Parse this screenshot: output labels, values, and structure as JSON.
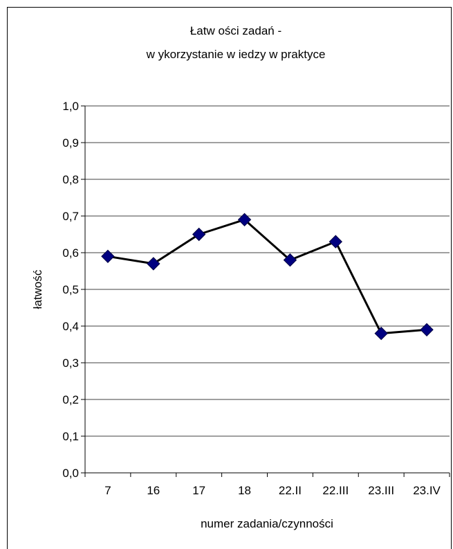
{
  "chart_data": {
    "type": "line",
    "title_lines": [
      "Łatw ości zadań -",
      "w ykorzystanie w iedzy w  praktyce"
    ],
    "xlabel": "numer zadania/czynności",
    "ylabel": "łatwość",
    "categories": [
      "7",
      "16",
      "17",
      "18",
      "22.II",
      "22.III",
      "23.III",
      "23.IV"
    ],
    "series": [
      {
        "values": [
          0.59,
          0.57,
          0.65,
          0.69,
          0.58,
          0.63,
          0.38,
          0.39
        ]
      }
    ],
    "ylim": [
      0,
      1.0
    ],
    "yticks": [
      "0,0",
      "0,1",
      "0,2",
      "0,3",
      "0,4",
      "0,5",
      "0,6",
      "0,7",
      "0,8",
      "0,9",
      "1,0"
    ],
    "grid": true,
    "legend": "none",
    "line_color": "#000000",
    "marker_color": "#000080",
    "marker_shape": "diamond"
  }
}
